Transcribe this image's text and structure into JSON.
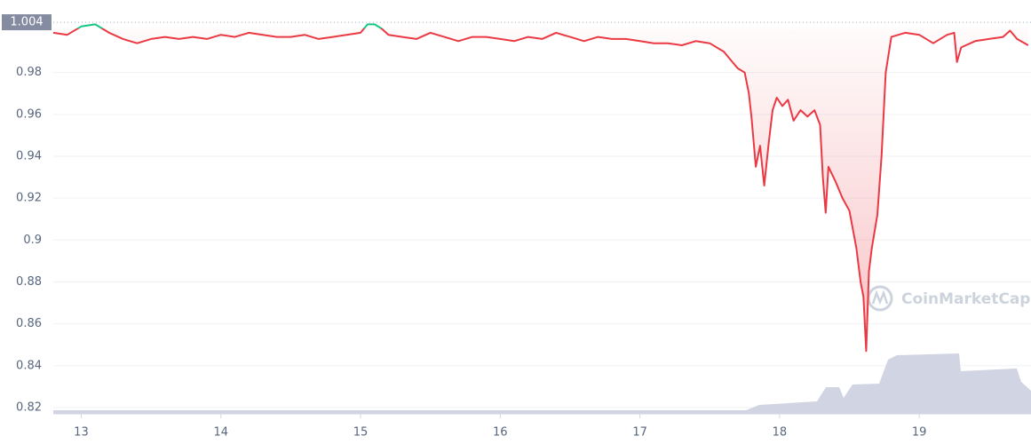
{
  "chart_data": {
    "type": "line",
    "x": [
      12.8,
      12.9,
      13.0,
      13.1,
      13.2,
      13.3,
      13.4,
      13.5,
      13.6,
      13.7,
      13.8,
      13.9,
      14.0,
      14.1,
      14.2,
      14.3,
      14.4,
      14.5,
      14.6,
      14.7,
      14.8,
      14.9,
      15.0,
      15.05,
      15.1,
      15.15,
      15.2,
      15.3,
      15.4,
      15.5,
      15.6,
      15.7,
      15.8,
      15.9,
      16.0,
      16.1,
      16.2,
      16.3,
      16.4,
      16.5,
      16.6,
      16.7,
      16.8,
      16.9,
      17.0,
      17.1,
      17.2,
      17.3,
      17.4,
      17.5,
      17.6,
      17.65,
      17.7,
      17.75,
      17.78,
      17.8,
      17.83,
      17.86,
      17.89,
      17.92,
      17.95,
      17.98,
      18.02,
      18.06,
      18.1,
      18.15,
      18.2,
      18.25,
      18.29,
      18.31,
      18.33,
      18.35,
      18.4,
      18.45,
      18.5,
      18.55,
      18.58,
      18.6,
      18.62,
      18.64,
      18.66,
      18.7,
      18.73,
      18.76,
      18.8,
      18.9,
      19.0,
      19.1,
      19.2,
      19.25,
      19.27,
      19.3,
      19.4,
      19.5,
      19.6,
      19.65,
      19.7,
      19.78
    ],
    "series": [
      {
        "color": "#ea3943",
        "above_color": "#16c784",
        "values": [
          0.999,
          0.998,
          1.002,
          1.003,
          0.999,
          0.996,
          0.994,
          0.996,
          0.997,
          0.996,
          0.997,
          0.996,
          0.998,
          0.997,
          0.999,
          0.998,
          0.997,
          0.997,
          0.998,
          0.996,
          0.997,
          0.998,
          0.999,
          1.003,
          1.003,
          1.001,
          0.998,
          0.997,
          0.996,
          0.999,
          0.997,
          0.995,
          0.997,
          0.997,
          0.996,
          0.995,
          0.997,
          0.996,
          0.999,
          0.997,
          0.995,
          0.997,
          0.996,
          0.996,
          0.995,
          0.994,
          0.994,
          0.993,
          0.995,
          0.994,
          0.99,
          0.986,
          0.982,
          0.98,
          0.97,
          0.958,
          0.935,
          0.945,
          0.926,
          0.945,
          0.962,
          0.968,
          0.964,
          0.967,
          0.957,
          0.962,
          0.959,
          0.962,
          0.955,
          0.93,
          0.913,
          0.935,
          0.928,
          0.92,
          0.914,
          0.896,
          0.88,
          0.873,
          0.847,
          0.885,
          0.896,
          0.912,
          0.94,
          0.98,
          0.997,
          0.999,
          0.998,
          0.994,
          0.998,
          0.999,
          0.985,
          0.992,
          0.995,
          0.996,
          0.997,
          1.0,
          0.996,
          0.993
        ]
      }
    ],
    "baseline": 1.001,
    "current_price": 1.004,
    "xlim": [
      12.8,
      19.8
    ],
    "xticks": [
      13,
      14,
      15,
      16,
      17,
      18,
      19
    ],
    "ylim": [
      0.817,
      1.007
    ],
    "yticks": [
      0.82,
      0.84,
      0.86,
      0.88,
      0.9,
      0.92,
      0.94,
      0.96,
      0.98
    ],
    "grid": true,
    "watermark": "CoinMarketCap"
  }
}
